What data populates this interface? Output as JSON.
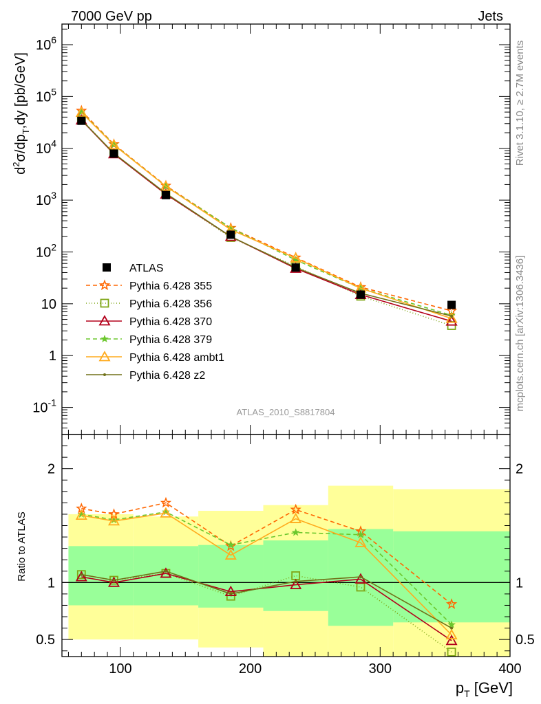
{
  "header": {
    "left": "7000 GeV pp",
    "right": "Jets"
  },
  "side_labels": {
    "rivet": "Rivet 3.1.10, ≥ 2.7M events",
    "mcplots": "mcplots.cern.ch [arXiv:1306.3436]"
  },
  "analysis_label": "ATLAS_2010_S8817804",
  "chart_data": [
    {
      "type": "line",
      "panel": "main",
      "yscale": "log",
      "ylim": [
        0.03,
        2500000
      ],
      "xlim": [
        55,
        400
      ],
      "ylabel": "d²σ/dp_T,dy [pb/GeV]",
      "ytick_labels": [
        "10^-1",
        "1",
        "10",
        "10^2",
        "10^3",
        "10^4",
        "10^5",
        "10^6"
      ],
      "x": [
        70,
        95,
        135,
        185,
        235,
        285,
        355
      ],
      "data": {
        "name": "ATLAS",
        "values": [
          34000,
          7900,
          1250,
          215,
          50,
          15,
          9.5
        ]
      },
      "series": [
        {
          "name": "Pythia 6.428 355",
          "color": "#ff6600",
          "dash": "6,4",
          "marker": "star",
          "values": [
            53000,
            12000,
            1900,
            290,
            78,
            21,
            7.3
          ]
        },
        {
          "name": "Pythia 6.428 356",
          "color": "#7fa616",
          "dash": "1,3",
          "marker": "open-square",
          "values": [
            36000,
            8000,
            1300,
            190,
            53,
            14,
            3.8
          ]
        },
        {
          "name": "Pythia 6.428 370",
          "color": "#b3001b",
          "dash": "",
          "marker": "open-triangle",
          "values": [
            35000,
            7800,
            1300,
            198,
            48,
            15,
            4.6
          ]
        },
        {
          "name": "Pythia 6.428 379",
          "color": "#6cc72d",
          "dash": "6,4",
          "marker": "small-star",
          "values": [
            50000,
            11800,
            1850,
            290,
            70,
            20,
            6.0
          ]
        },
        {
          "name": "Pythia 6.428 ambt1",
          "color": "#ffab1e",
          "dash": "",
          "marker": "open-triangle",
          "values": [
            49000,
            11600,
            1850,
            270,
            76,
            20,
            5.2
          ]
        },
        {
          "name": "Pythia 6.428 z2",
          "color": "#707118",
          "dash": "",
          "marker": "dot",
          "values": [
            35500,
            8000,
            1350,
            198,
            50,
            16,
            5.8
          ]
        }
      ]
    },
    {
      "type": "line",
      "panel": "ratio",
      "ylabel": "Ratio to ATLAS",
      "xlabel": "p_T [GeV]",
      "xlim": [
        55,
        400
      ],
      "ylim": [
        0.35,
        2.3
      ],
      "xticks": [
        100,
        200,
        300,
        400
      ],
      "yticks": [
        0.5,
        1,
        2
      ],
      "x": [
        70,
        95,
        135,
        185,
        235,
        285,
        355
      ],
      "bands": [
        {
          "x0": 60,
          "x1": 110,
          "y0": 0.8,
          "y1": 1.32,
          "kind": "stat"
        },
        {
          "x0": 110,
          "x1": 160,
          "y0": 0.8,
          "y1": 1.32,
          "kind": "stat"
        },
        {
          "x0": 160,
          "x1": 210,
          "y0": 0.78,
          "y1": 1.33,
          "kind": "stat"
        },
        {
          "x0": 210,
          "x1": 260,
          "y0": 0.75,
          "y1": 1.37,
          "kind": "stat"
        },
        {
          "x0": 260,
          "x1": 310,
          "y0": 0.62,
          "y1": 1.47,
          "kind": "stat"
        },
        {
          "x0": 310,
          "x1": 400,
          "y0": 0.65,
          "y1": 1.45,
          "kind": "stat"
        },
        {
          "x0": 60,
          "x1": 110,
          "y0": 0.5,
          "y1": 1.6,
          "kind": "syst"
        },
        {
          "x0": 110,
          "x1": 160,
          "y0": 0.5,
          "y1": 1.58,
          "kind": "syst"
        },
        {
          "x0": 160,
          "x1": 210,
          "y0": 0.43,
          "y1": 1.63,
          "kind": "syst"
        },
        {
          "x0": 210,
          "x1": 260,
          "y0": 0.35,
          "y1": 1.68,
          "kind": "syst"
        },
        {
          "x0": 260,
          "x1": 310,
          "y0": 0.35,
          "y1": 1.85,
          "kind": "syst"
        },
        {
          "x0": 310,
          "x1": 400,
          "y0": 0.35,
          "y1": 1.82,
          "kind": "syst"
        }
      ],
      "series": [
        {
          "name": "Pythia 6.428 355",
          "values": [
            1.65,
            1.6,
            1.7,
            1.32,
            1.64,
            1.45,
            0.81
          ]
        },
        {
          "name": "Pythia 6.428 356",
          "values": [
            1.07,
            1.02,
            1.08,
            0.88,
            1.06,
            0.96,
            0.39
          ]
        },
        {
          "name": "Pythia 6.428 370",
          "values": [
            1.05,
            1.0,
            1.08,
            0.92,
            0.98,
            1.03,
            0.49
          ]
        },
        {
          "name": "Pythia 6.428 379",
          "values": [
            1.6,
            1.55,
            1.62,
            1.33,
            1.44,
            1.42,
            0.63
          ]
        },
        {
          "name": "Pythia 6.428 ambt1",
          "values": [
            1.59,
            1.54,
            1.61,
            1.24,
            1.56,
            1.35,
            0.54
          ]
        },
        {
          "name": "Pythia 6.428 z2",
          "values": [
            1.07,
            1.02,
            1.1,
            0.9,
            1.01,
            1.05,
            0.6
          ]
        }
      ]
    }
  ]
}
